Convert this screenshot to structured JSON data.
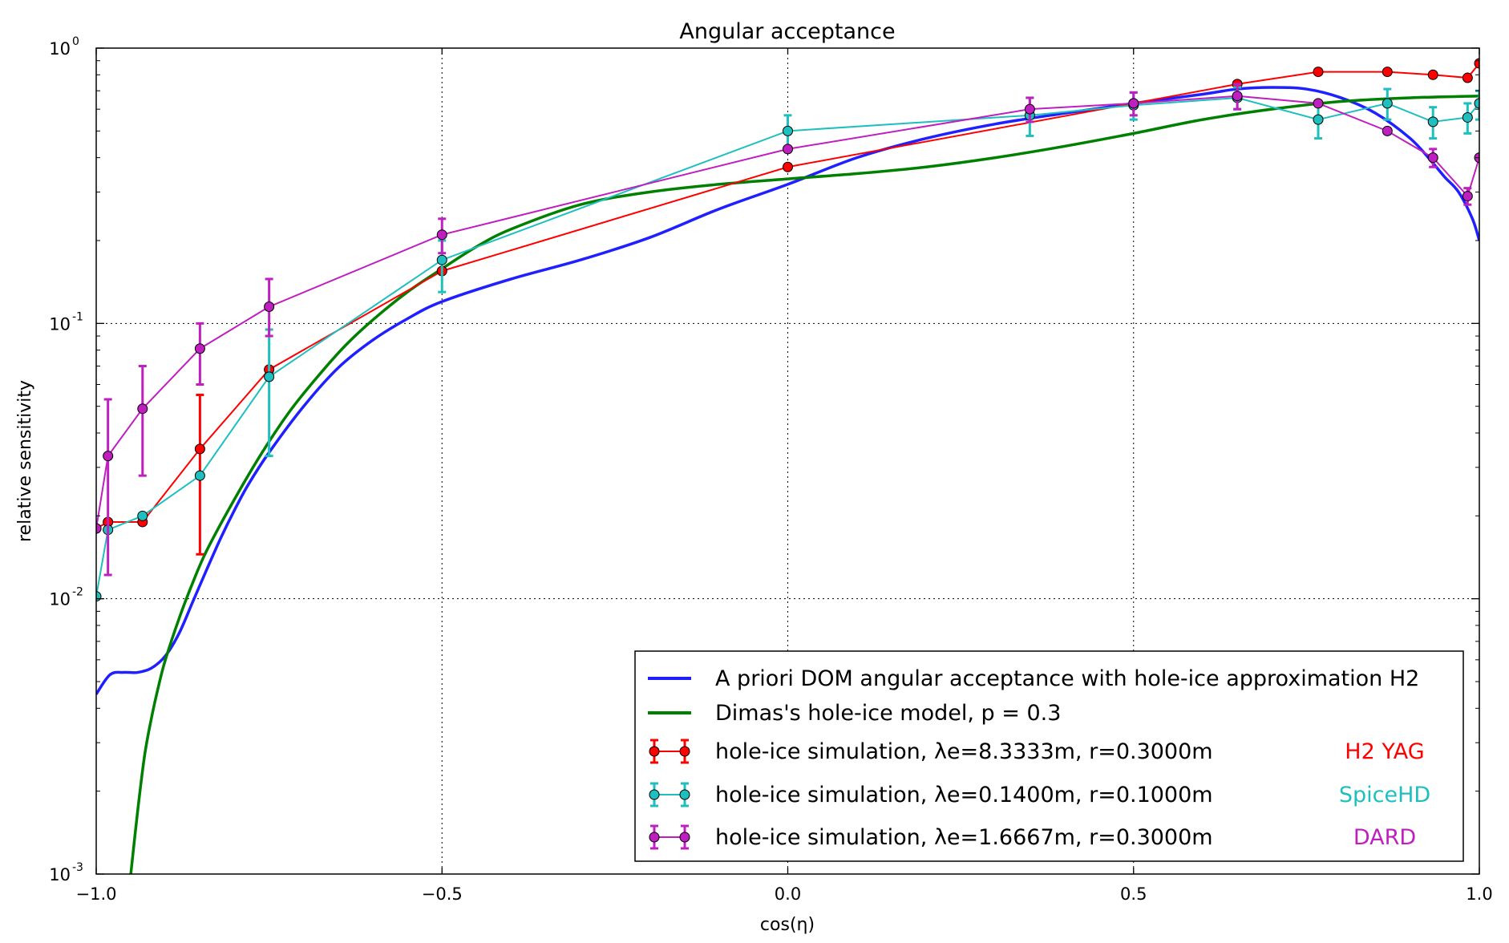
{
  "chart_data": {
    "type": "line",
    "title": "Angular acceptance",
    "xlabel": "cos(η)",
    "ylabel": "relative sensitivity",
    "xlim": [
      -1.0,
      1.0
    ],
    "ylim": [
      0.001,
      1.0
    ],
    "yscale": "log",
    "grid": true,
    "legend_position": "lower-right",
    "x_ticks": [
      {
        "value": -1.0,
        "label": "−1.0"
      },
      {
        "value": -0.5,
        "label": "−0.5"
      },
      {
        "value": 0.0,
        "label": "0.0"
      },
      {
        "value": 0.5,
        "label": "0.5"
      },
      {
        "value": 1.0,
        "label": "1.0"
      }
    ],
    "y_ticks": [
      {
        "value": 1.0,
        "base": "10",
        "exp": "0"
      },
      {
        "value": 0.1,
        "base": "10",
        "exp": "-1"
      },
      {
        "value": 0.01,
        "base": "10",
        "exp": "-2"
      },
      {
        "value": 0.001,
        "base": "10",
        "exp": "-3"
      }
    ],
    "curves": [
      {
        "name": "A priori DOM angular acceptance with hole-ice approximation H2",
        "color": "#1f1fff",
        "x": [
          -1.0,
          -0.98,
          -0.96,
          -0.94,
          -0.92,
          -0.9,
          -0.88,
          -0.86,
          -0.84,
          -0.82,
          -0.8,
          -0.78,
          -0.75,
          -0.7,
          -0.65,
          -0.6,
          -0.55,
          -0.5,
          -0.4,
          -0.3,
          -0.2,
          -0.1,
          0.0,
          0.1,
          0.2,
          0.3,
          0.4,
          0.5,
          0.6,
          0.65,
          0.7,
          0.75,
          0.8,
          0.85,
          0.9,
          0.93,
          0.95,
          0.97,
          0.99,
          1.0
        ],
        "y": [
          0.0045,
          0.0053,
          0.0054,
          0.0054,
          0.0056,
          0.0062,
          0.0075,
          0.0098,
          0.0128,
          0.0166,
          0.021,
          0.026,
          0.034,
          0.05,
          0.069,
          0.087,
          0.104,
          0.12,
          0.145,
          0.17,
          0.205,
          0.26,
          0.32,
          0.4,
          0.47,
          0.53,
          0.58,
          0.63,
          0.68,
          0.71,
          0.72,
          0.71,
          0.66,
          0.58,
          0.47,
          0.39,
          0.34,
          0.3,
          0.24,
          0.2
        ]
      },
      {
        "name": "Dimas's hole-ice model, p = 0.3",
        "color": "#008000",
        "x": [
          -0.95,
          -0.94,
          -0.93,
          -0.92,
          -0.91,
          -0.9,
          -0.88,
          -0.86,
          -0.84,
          -0.8,
          -0.76,
          -0.72,
          -0.68,
          -0.64,
          -0.6,
          -0.55,
          -0.5,
          -0.45,
          -0.4,
          -0.3,
          -0.2,
          -0.1,
          0.0,
          0.1,
          0.2,
          0.3,
          0.4,
          0.5,
          0.6,
          0.7,
          0.8,
          0.9,
          1.0
        ],
        "y": [
          0.001,
          0.0017,
          0.0027,
          0.0037,
          0.0048,
          0.006,
          0.0085,
          0.0115,
          0.015,
          0.023,
          0.034,
          0.048,
          0.064,
          0.083,
          0.103,
          0.13,
          0.158,
          0.19,
          0.22,
          0.27,
          0.3,
          0.32,
          0.335,
          0.35,
          0.37,
          0.4,
          0.44,
          0.49,
          0.55,
          0.6,
          0.64,
          0.66,
          0.67
        ]
      }
    ],
    "series": [
      {
        "name": "hole-ice simulation, λe=8.3333m, r=0.3000m",
        "tag": "H2 YAG",
        "color": "#ff0000",
        "x": [
          -1.0,
          -0.983,
          -0.933,
          -0.85,
          -0.75,
          -0.5,
          0.0,
          0.5,
          0.65,
          0.767,
          0.867,
          0.933,
          0.983,
          1.0
        ],
        "y": [
          0.018,
          0.019,
          0.019,
          0.035,
          0.068,
          0.155,
          0.37,
          0.63,
          0.74,
          0.82,
          0.82,
          0.8,
          0.78,
          0.88
        ],
        "yerr_low": [
          0.018,
          0.019,
          0.019,
          0.0145,
          0.068,
          0.155,
          0.37,
          0.63,
          0.74,
          0.82,
          0.82,
          0.8,
          0.78,
          0.88
        ],
        "yerr_high": [
          0.018,
          0.019,
          0.019,
          0.055,
          0.068,
          0.155,
          0.37,
          0.63,
          0.74,
          0.82,
          0.82,
          0.8,
          0.78,
          0.88
        ]
      },
      {
        "name": "hole-ice simulation, λe=0.1400m, r=0.1000m",
        "tag": "SpiceHD",
        "color": "#1fbfbf",
        "x": [
          -1.0,
          -0.983,
          -0.933,
          -0.85,
          -0.75,
          -0.5,
          0.0,
          0.35,
          0.5,
          0.65,
          0.767,
          0.867,
          0.933,
          0.983,
          1.0
        ],
        "y": [
          0.0102,
          0.0178,
          0.02,
          0.028,
          0.064,
          0.17,
          0.5,
          0.57,
          0.62,
          0.66,
          0.55,
          0.63,
          0.54,
          0.56,
          0.63
        ],
        "yerr_low": [
          0.0102,
          0.0178,
          0.02,
          0.028,
          0.033,
          0.13,
          0.43,
          0.48,
          0.55,
          0.6,
          0.47,
          0.55,
          0.47,
          0.49,
          0.55
        ],
        "yerr_high": [
          0.0102,
          0.0178,
          0.02,
          0.028,
          0.095,
          0.2,
          0.57,
          0.66,
          0.69,
          0.72,
          0.63,
          0.71,
          0.61,
          0.63,
          0.7
        ]
      },
      {
        "name": "hole-ice simulation, λe=1.6667m, r=0.3000m",
        "tag": "DARD",
        "color": "#bf1fbf",
        "x": [
          -1.0,
          -0.983,
          -0.933,
          -0.85,
          -0.75,
          -0.5,
          0.0,
          0.35,
          0.5,
          0.65,
          0.767,
          0.867,
          0.933,
          0.983,
          1.0
        ],
        "y": [
          0.018,
          0.033,
          0.049,
          0.081,
          0.115,
          0.21,
          0.43,
          0.6,
          0.63,
          0.67,
          0.63,
          0.5,
          0.4,
          0.29,
          0.4
        ],
        "yerr_low": [
          0.018,
          0.0122,
          0.028,
          0.06,
          0.09,
          0.18,
          0.43,
          0.54,
          0.57,
          0.6,
          0.63,
          0.5,
          0.37,
          0.27,
          0.4
        ],
        "yerr_high": [
          0.018,
          0.053,
          0.07,
          0.1,
          0.145,
          0.24,
          0.43,
          0.66,
          0.69,
          0.74,
          0.63,
          0.5,
          0.43,
          0.31,
          0.4
        ]
      }
    ]
  }
}
